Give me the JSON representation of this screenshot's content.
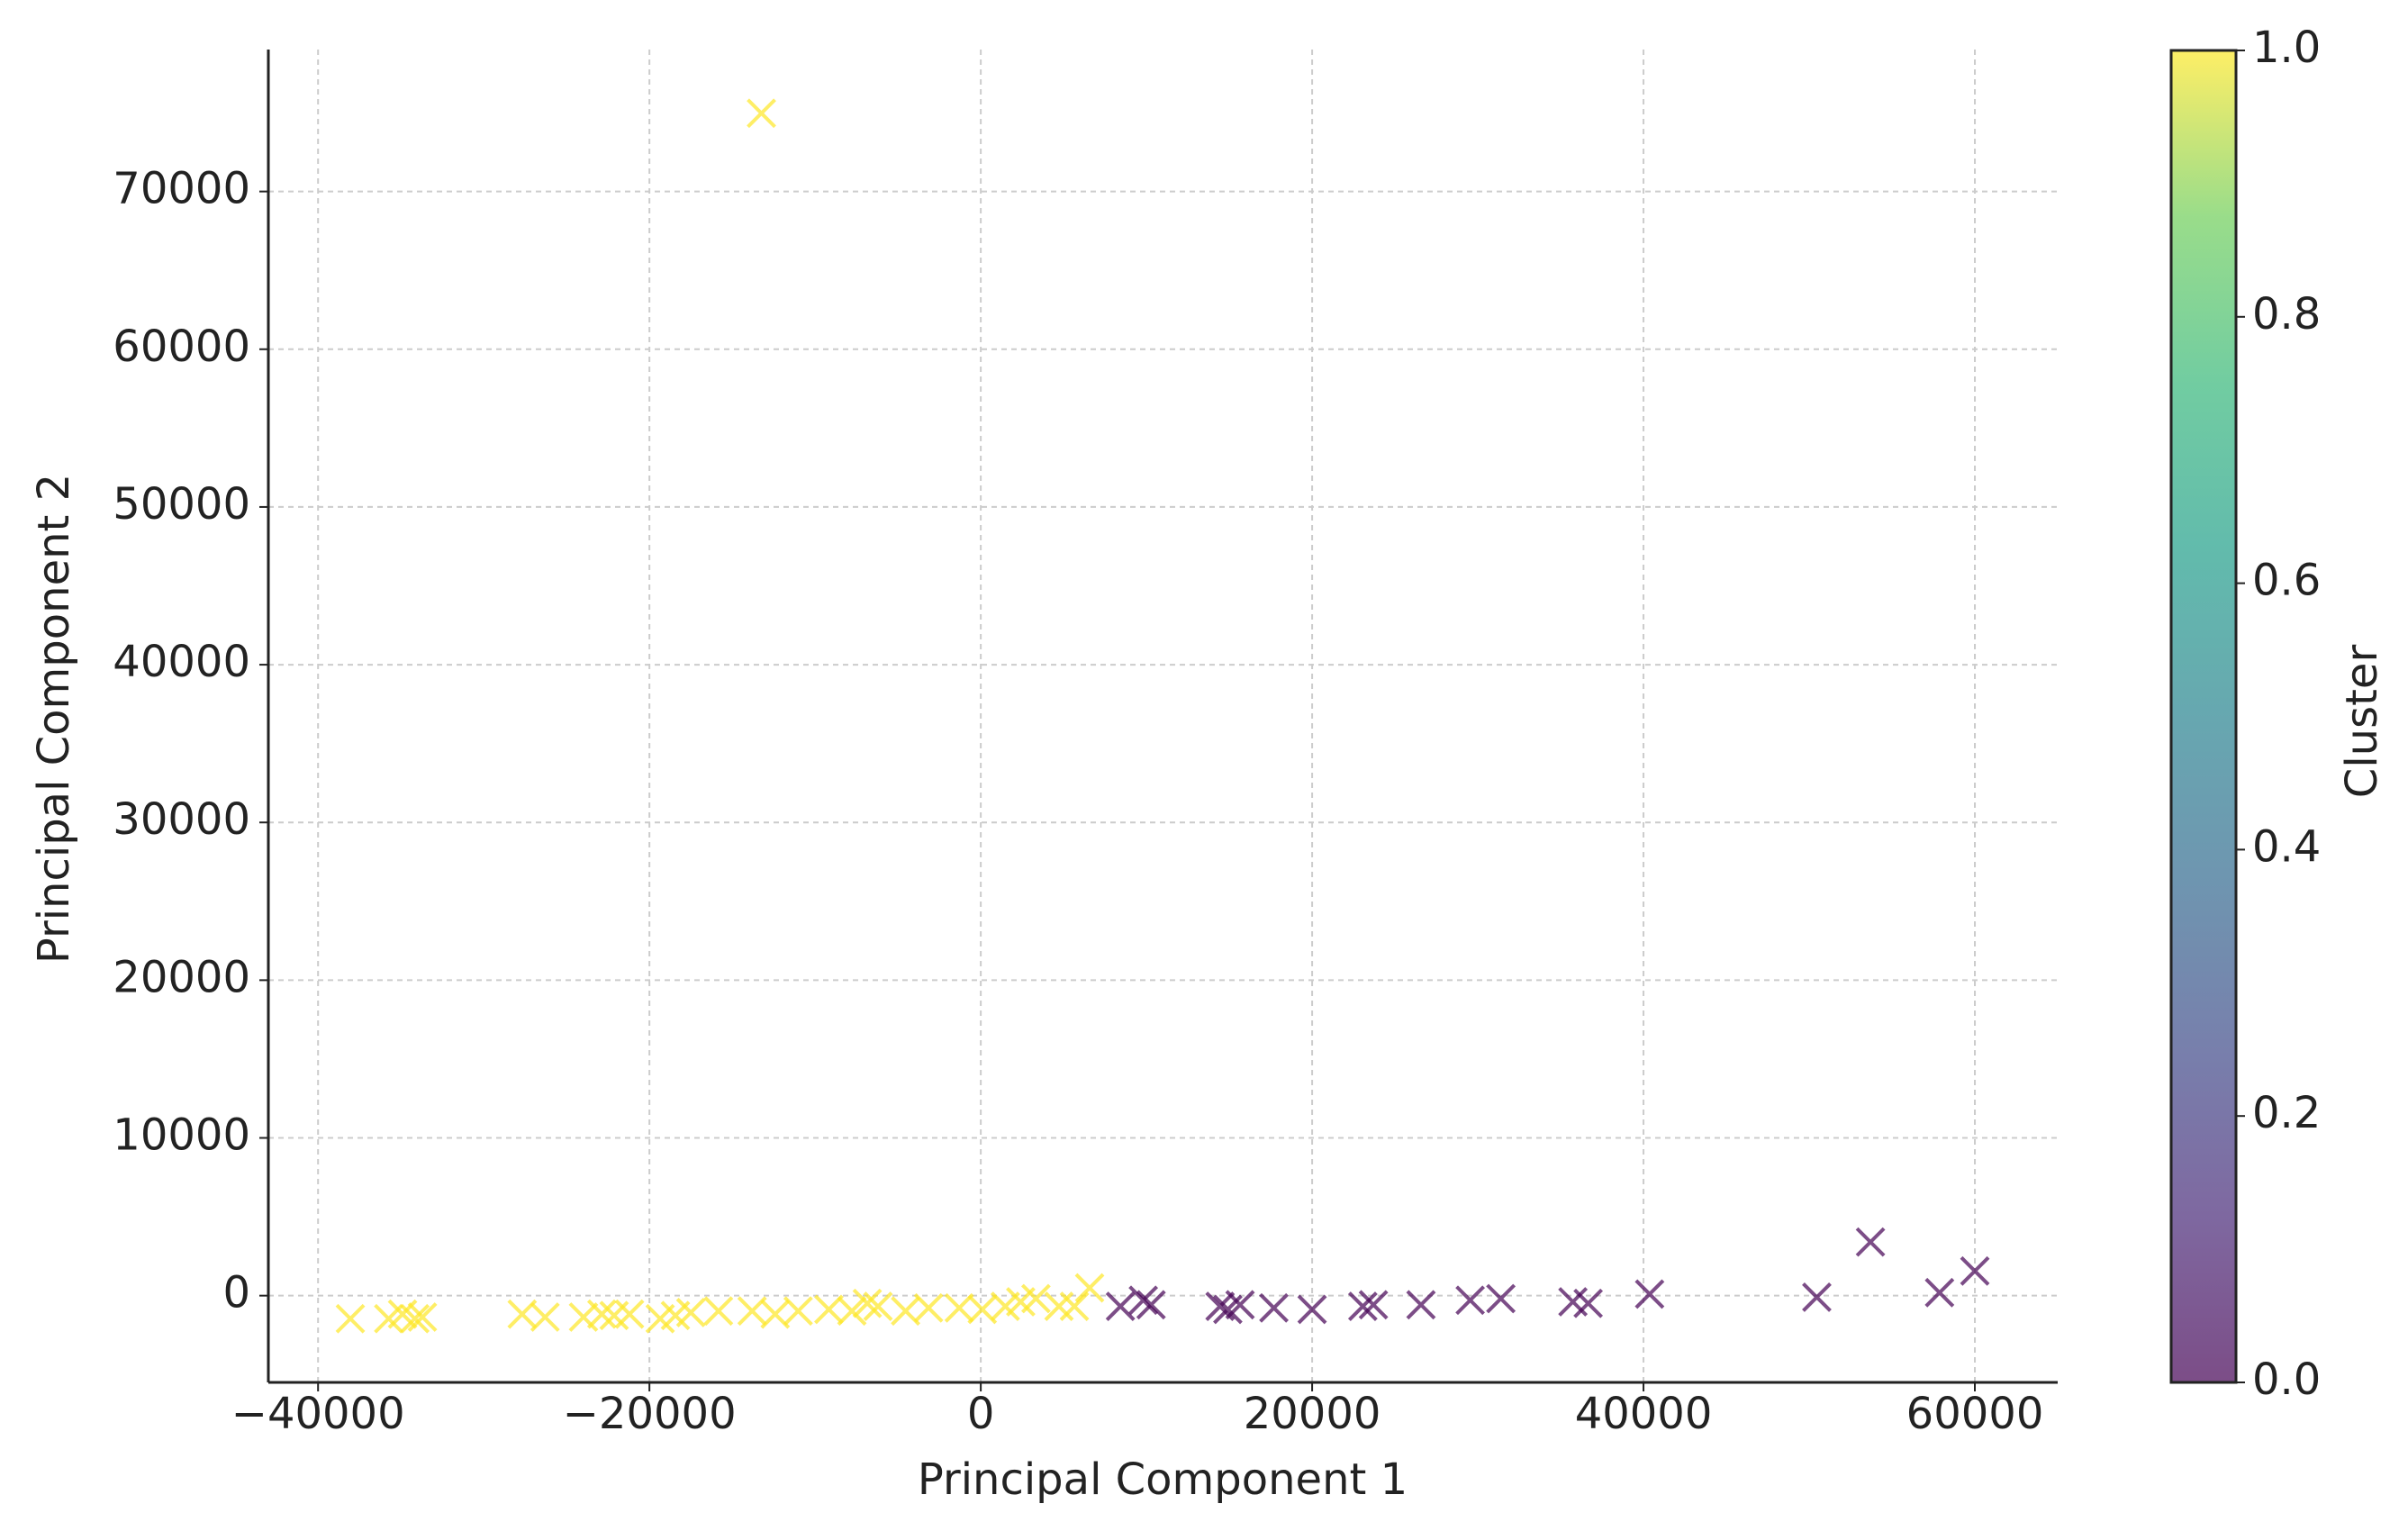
{
  "chart_data": {
    "type": "scatter",
    "x_label": "Principal Component 1",
    "y_label": "Principal Component 2",
    "xlim": [
      -43000,
      65000
    ],
    "ylim": [
      -5500,
      79000
    ],
    "xticks": [
      {
        "value": -40000,
        "label": "−40000"
      },
      {
        "value": -20000,
        "label": "−20000"
      },
      0,
      20000,
      40000,
      60000
    ],
    "yticks": [
      0,
      10000,
      20000,
      30000,
      40000,
      50000,
      60000,
      70000
    ],
    "grid": true,
    "marker": "x",
    "alpha": 0.7,
    "colorbar": {
      "label": "Cluster",
      "colormap": "viridis",
      "lim": [
        0,
        1
      ],
      "ticks": [
        {
          "value": 0,
          "label": "0.0"
        },
        0.2,
        0.4,
        0.6,
        0.8,
        {
          "value": 1,
          "label": "1.0"
        }
      ]
    },
    "series": [
      {
        "c": 1,
        "x": [
          -13240,
          -38050,
          -35740,
          -34900,
          -34160,
          -33700,
          -27680,
          -26300,
          -23980,
          -22870,
          -22130,
          -21200,
          -19350,
          -18430,
          -17500,
          -15830,
          -13800,
          -12410,
          -11020,
          -9170,
          -7780,
          -6850,
          -6200,
          -4540,
          -3150,
          -1300,
          90,
          1480,
          2410,
          3330,
          4720,
          5650,
          6570
        ],
        "values": [
          74960,
          -1460,
          -1460,
          -1170,
          -1460,
          -1360,
          -1170,
          -1360,
          -1360,
          -1170,
          -1260,
          -1170,
          -1460,
          -1260,
          -1070,
          -970,
          -970,
          -1170,
          -970,
          -870,
          -970,
          -490,
          -680,
          -970,
          -780,
          -780,
          -870,
          -680,
          -390,
          -190,
          -680,
          -680,
          490
        ]
      },
      {
        "c": 0,
        "x": [
          8430,
          9810,
          10280,
          14440,
          14910,
          15650,
          17690,
          20000,
          23060,
          23700,
          26570,
          29540,
          31390,
          35740,
          36660,
          40370,
          50460,
          53700,
          57870,
          60000
        ],
        "values": [
          -680,
          -290,
          -580,
          -680,
          -870,
          -580,
          -780,
          -870,
          -680,
          -580,
          -580,
          -290,
          -190,
          -390,
          -490,
          100,
          -100,
          3400,
          190,
          1560
        ]
      }
    ]
  }
}
